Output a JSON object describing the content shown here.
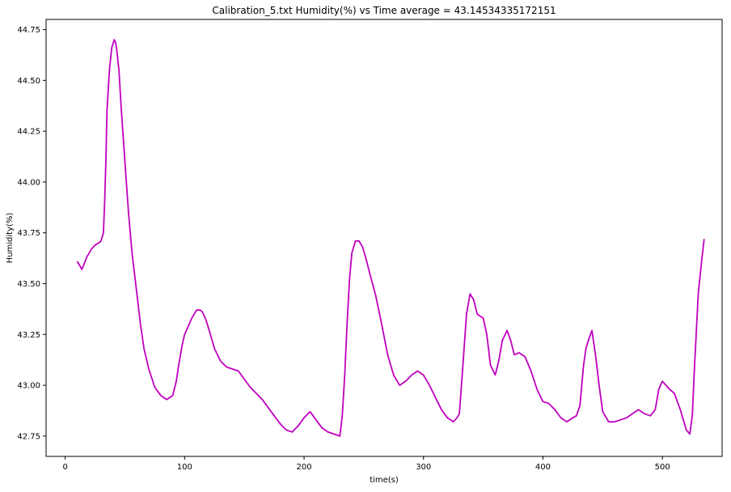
{
  "chart_data": {
    "type": "line",
    "title": "Calibration_5.txt  Humidity(%) vs Time  average = 43.14534335172151",
    "xlabel": "time(s)",
    "ylabel": "Humidity(%)",
    "xlim": [
      -16,
      550
    ],
    "ylim": [
      42.65,
      44.8
    ],
    "x_ticks": [
      0,
      100,
      200,
      300,
      400,
      500
    ],
    "x_tick_labels": [
      "0",
      "100",
      "200",
      "300",
      "400",
      "500"
    ],
    "y_ticks": [
      42.75,
      43.0,
      43.25,
      43.5,
      43.75,
      44.0,
      44.25,
      44.5,
      44.75
    ],
    "y_tick_labels": [
      "42.75",
      "43.00",
      "43.25",
      "43.50",
      "43.75",
      "44.00",
      "44.25",
      "44.50",
      "44.75"
    ],
    "grid": false,
    "legend": "none",
    "series": [
      {
        "color": "#bf00bf",
        "x": [
          10,
          12,
          14,
          16,
          18,
          20,
          22,
          25,
          28,
          30,
          32,
          33,
          34,
          35,
          37,
          39,
          41,
          42,
          43,
          45,
          47,
          50,
          53,
          56,
          60,
          63,
          66,
          70,
          75,
          80,
          85,
          90,
          93,
          95,
          98,
          100,
          103,
          106,
          110,
          113,
          115,
          118,
          121,
          125,
          130,
          135,
          140,
          145,
          150,
          155,
          160,
          165,
          170,
          175,
          180,
          185,
          190,
          195,
          200,
          205,
          210,
          215,
          220,
          225,
          230,
          232,
          234,
          236,
          238,
          240,
          243,
          246,
          249,
          252,
          255,
          260,
          265,
          270,
          275,
          280,
          285,
          290,
          295,
          300,
          305,
          310,
          315,
          320,
          325,
          328,
          330,
          333,
          336,
          339,
          342,
          345,
          350,
          353,
          356,
          360,
          363,
          366,
          370,
          373,
          376,
          380,
          385,
          390,
          395,
          400,
          405,
          410,
          415,
          420,
          425,
          428,
          431,
          434,
          436,
          438,
          441,
          444,
          447,
          450,
          455,
          460,
          465,
          470,
          475,
          480,
          485,
          490,
          494,
          497,
          500,
          503,
          506,
          510,
          515,
          520,
          523,
          525,
          527,
          530,
          533,
          535
        ],
        "y": [
          43.61,
          43.59,
          43.57,
          43.6,
          43.63,
          43.65,
          43.67,
          43.69,
          43.7,
          43.71,
          43.75,
          43.9,
          44.1,
          44.35,
          44.55,
          44.66,
          44.7,
          44.69,
          44.66,
          44.55,
          44.35,
          44.1,
          43.85,
          43.65,
          43.45,
          43.3,
          43.18,
          43.08,
          42.99,
          42.95,
          42.93,
          42.95,
          43.02,
          43.1,
          43.2,
          43.25,
          43.29,
          43.33,
          43.37,
          43.37,
          43.36,
          43.32,
          43.26,
          43.18,
          43.12,
          43.09,
          43.08,
          43.07,
          43.03,
          42.99,
          42.96,
          42.93,
          42.89,
          42.85,
          42.81,
          42.78,
          42.77,
          42.8,
          42.84,
          42.87,
          42.83,
          42.79,
          42.77,
          42.76,
          42.75,
          42.85,
          43.05,
          43.3,
          43.52,
          43.65,
          43.71,
          43.71,
          43.68,
          43.62,
          43.55,
          43.44,
          43.3,
          43.15,
          43.05,
          43.0,
          43.02,
          43.05,
          43.07,
          43.05,
          43.0,
          42.94,
          42.88,
          42.84,
          42.82,
          42.84,
          42.86,
          43.1,
          43.35,
          43.45,
          43.42,
          43.35,
          43.33,
          43.25,
          43.1,
          43.05,
          43.12,
          43.22,
          43.27,
          43.22,
          43.15,
          43.16,
          43.14,
          43.07,
          42.98,
          42.92,
          42.91,
          42.88,
          42.84,
          42.82,
          42.84,
          42.85,
          42.9,
          43.1,
          43.18,
          43.22,
          43.27,
          43.15,
          43.0,
          42.87,
          42.82,
          42.82,
          42.83,
          42.84,
          42.86,
          42.88,
          42.86,
          42.85,
          42.88,
          42.98,
          43.02,
          43.0,
          42.98,
          42.96,
          42.88,
          42.78,
          42.76,
          42.85,
          43.1,
          43.45,
          43.62,
          43.72
        ]
      }
    ]
  }
}
